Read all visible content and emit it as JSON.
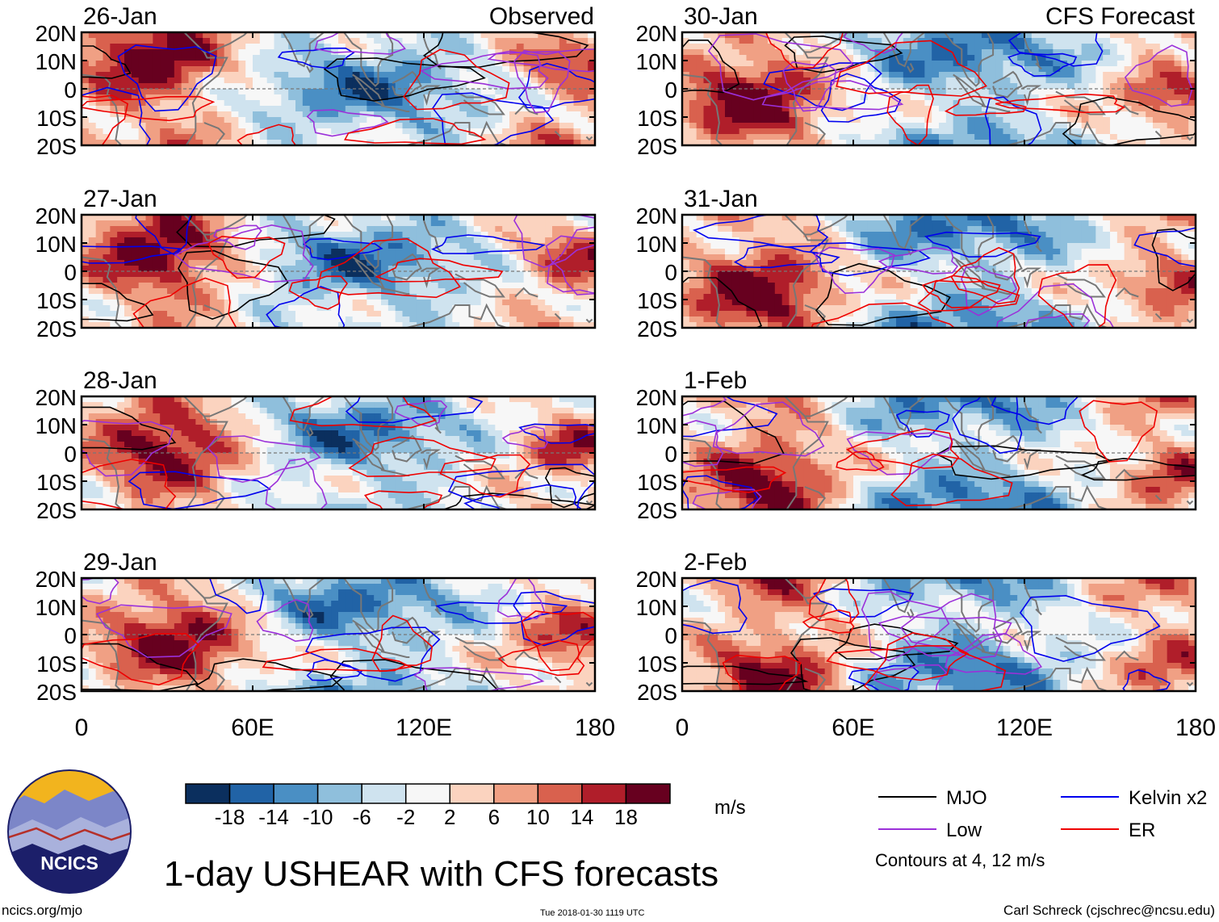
{
  "chart_data": {
    "type": "heatmap",
    "title": "1-day USHEAR with CFS forecasts",
    "variable": "USHEAR",
    "units": "m/s",
    "x_range": [
      0,
      180
    ],
    "y_range": [
      -20,
      20
    ],
    "x_ticks": [
      "0",
      "60E",
      "120E",
      "180"
    ],
    "y_ticks": [
      "20N",
      "10N",
      "0",
      "10S",
      "20S"
    ],
    "column_titles": {
      "left": "Observed",
      "right": "CFS Forecast"
    },
    "panels": [
      {
        "date": "26-Jan",
        "source": "Observed",
        "column": 0,
        "row": 0
      },
      {
        "date": "27-Jan",
        "source": "Observed",
        "column": 0,
        "row": 1
      },
      {
        "date": "28-Jan",
        "source": "Observed",
        "column": 0,
        "row": 2
      },
      {
        "date": "29-Jan",
        "source": "Observed",
        "column": 0,
        "row": 3
      },
      {
        "date": "30-Jan",
        "source": "CFS Forecast",
        "column": 1,
        "row": 0
      },
      {
        "date": "31-Jan",
        "source": "CFS Forecast",
        "column": 1,
        "row": 1
      },
      {
        "date": "1-Feb",
        "source": "CFS Forecast",
        "column": 1,
        "row": 2
      },
      {
        "date": "2-Feb",
        "source": "CFS Forecast",
        "column": 1,
        "row": 3
      }
    ],
    "colorbar": {
      "labels": [
        "-18",
        "-14",
        "-10",
        "-6",
        "-2",
        "2",
        "6",
        "10",
        "14",
        "18"
      ],
      "colors": [
        "#0b2f5e",
        "#2163a6",
        "#4a8fc4",
        "#8fbfdc",
        "#cfe3ef",
        "#f7f7f7",
        "#fbd3bf",
        "#f0a084",
        "#d9614e",
        "#b01e2a",
        "#67001f"
      ]
    },
    "legend": {
      "items": [
        {
          "label": "MJO",
          "color": "#000000"
        },
        {
          "label": "Kelvin x2",
          "color": "#0000ee"
        },
        {
          "label": "Low",
          "color": "#9b30d9"
        },
        {
          "label": "ER",
          "color": "#ee0000"
        }
      ],
      "note": "Contours at 4, 12 m/s"
    }
  },
  "footer": {
    "logo_text": "NCICS",
    "site": "ncics.org/mjo",
    "timestamp": "Tue 2018-01-30 1119 UTC",
    "author": "Carl Schreck (cjschrec@ncsu.edu)"
  }
}
